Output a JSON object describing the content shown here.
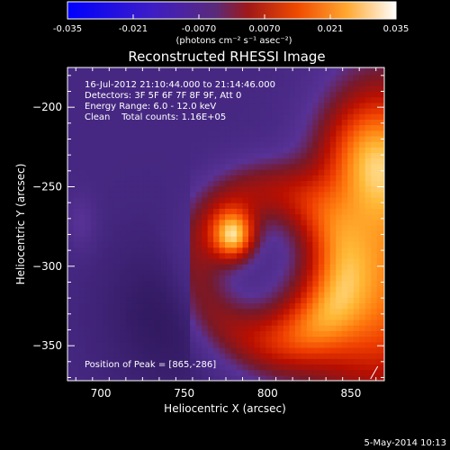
{
  "chart_data": {
    "type": "heatmap",
    "title": "Reconstructed RHESSI Image",
    "xlabel": "Heliocentric X (arcsec)",
    "ylabel": "Heliocentric Y (arcsec)",
    "xlim": [
      680,
      870
    ],
    "ylim": [
      -372,
      -175
    ],
    "x_ticks": [
      700,
      750,
      800,
      850
    ],
    "y_ticks": [
      -200,
      -250,
      -300,
      -350
    ],
    "colorbar": {
      "range": [
        -0.035,
        0.035
      ],
      "ticks": [
        "-0.035",
        "-0.021",
        "-0.0070",
        "0.0070",
        "0.021",
        "0.035"
      ],
      "unit_label": "(photons cm⁻² s⁻¹ asec⁻²)",
      "colors": [
        "#0000ff",
        "#5a3cb4",
        "#9b2020",
        "#ff6600",
        "#ffc040",
        "#ffffff"
      ]
    },
    "annotations": [
      "16-Jul-2012 21:10:44.000 to 21:14:46.000",
      "Detectors: 3F 5F 6F 7F 8F 9F, Att 0",
      "Energy Range: 6.0 - 12.0 keV",
      "Clean    Total counts: 1.16E+05"
    ],
    "peak_label": "Position of Peak = [865,-286]",
    "peak": [
      865,
      -286
    ],
    "features": [
      {
        "name": "bright knot",
        "x": 780,
        "y": -281,
        "level": 0.85
      },
      {
        "name": "limb peak",
        "x": 865,
        "y": -286,
        "level": 1.0
      }
    ]
  },
  "footer": {
    "timestamp": "5-May-2014 10:13"
  }
}
